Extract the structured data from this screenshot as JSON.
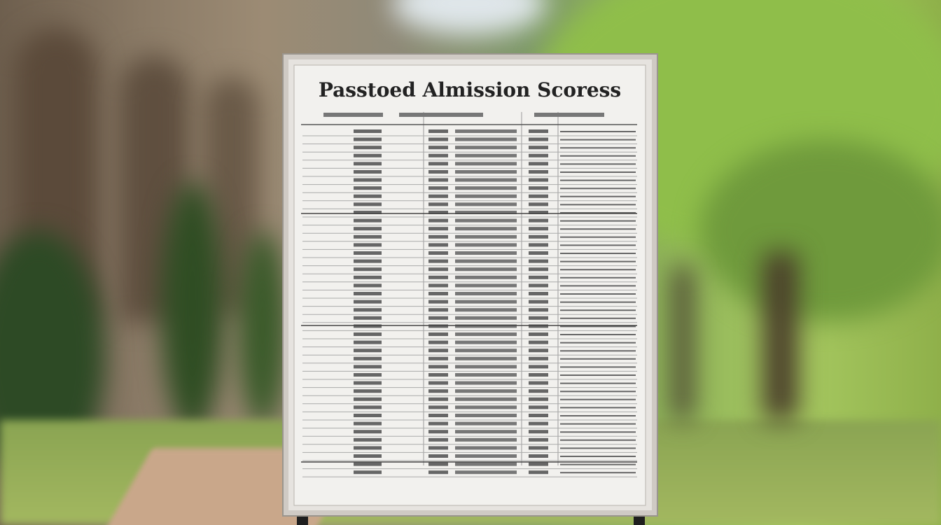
{
  "board": {
    "title": "Passtoed Almission Scoress"
  }
}
